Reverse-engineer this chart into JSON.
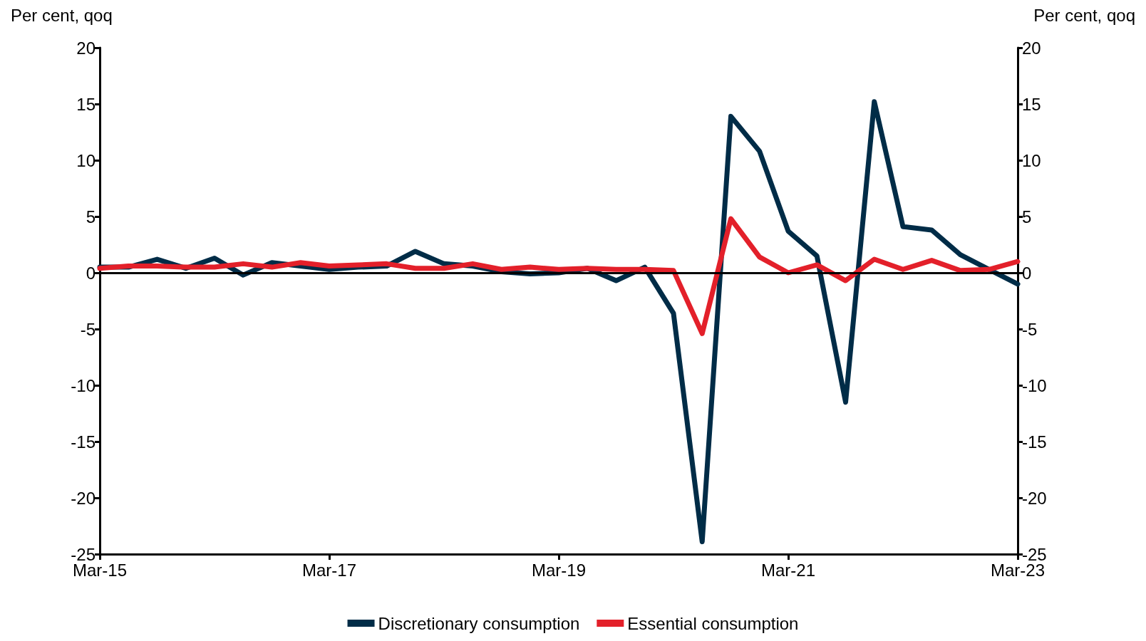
{
  "chart_data": {
    "type": "line",
    "ylabel": "Per cent, qoq",
    "y2label": "Per cent, qoq",
    "categories": [
      "Mar-15",
      null,
      null,
      null,
      null,
      null,
      null,
      null,
      "Mar-17",
      null,
      null,
      null,
      null,
      null,
      null,
      null,
      "Mar-19",
      null,
      null,
      null,
      null,
      null,
      null,
      null,
      "Mar-21",
      null,
      null,
      null,
      null,
      null,
      null,
      null,
      "Mar-23"
    ],
    "series": [
      {
        "name": "Discretionary consumption",
        "color": "#002c47",
        "values": [
          0.5,
          0.5,
          1.2,
          0.4,
          1.3,
          -0.2,
          0.9,
          0.6,
          0.3,
          0.5,
          0.6,
          1.9,
          0.8,
          0.6,
          0.1,
          -0.1,
          0.0,
          0.4,
          -0.7,
          0.5,
          -3.6,
          -23.9,
          13.9,
          10.8,
          3.7,
          1.5,
          -11.5,
          15.2,
          4.1,
          3.8,
          1.6,
          0.3,
          -1.0
        ]
      },
      {
        "name": "Essential consumption",
        "color": "#e3202a",
        "values": [
          0.4,
          0.6,
          0.6,
          0.5,
          0.5,
          0.8,
          0.5,
          0.9,
          0.6,
          0.7,
          0.8,
          0.4,
          0.4,
          0.8,
          0.3,
          0.5,
          0.3,
          0.4,
          0.3,
          0.3,
          0.2,
          -5.4,
          4.8,
          1.4,
          0.0,
          0.7,
          -0.7,
          1.2,
          0.3,
          1.1,
          0.2,
          0.3,
          1.0
        ]
      }
    ],
    "ylim": [
      -25,
      20
    ],
    "yticks": [
      -25,
      -20,
      -15,
      -10,
      -5,
      0,
      5,
      10,
      15,
      20
    ],
    "y2lim": [
      -25,
      20
    ],
    "y2ticks": [
      -25,
      -20,
      -15,
      -10,
      -5,
      0,
      5,
      10,
      15,
      20
    ],
    "ref_lines": [
      {
        "axis": "y",
        "value": 0,
        "color": "#000000"
      }
    ],
    "grid": false,
    "legend": "bottom",
    "marker": "none",
    "line_style": "solid"
  }
}
